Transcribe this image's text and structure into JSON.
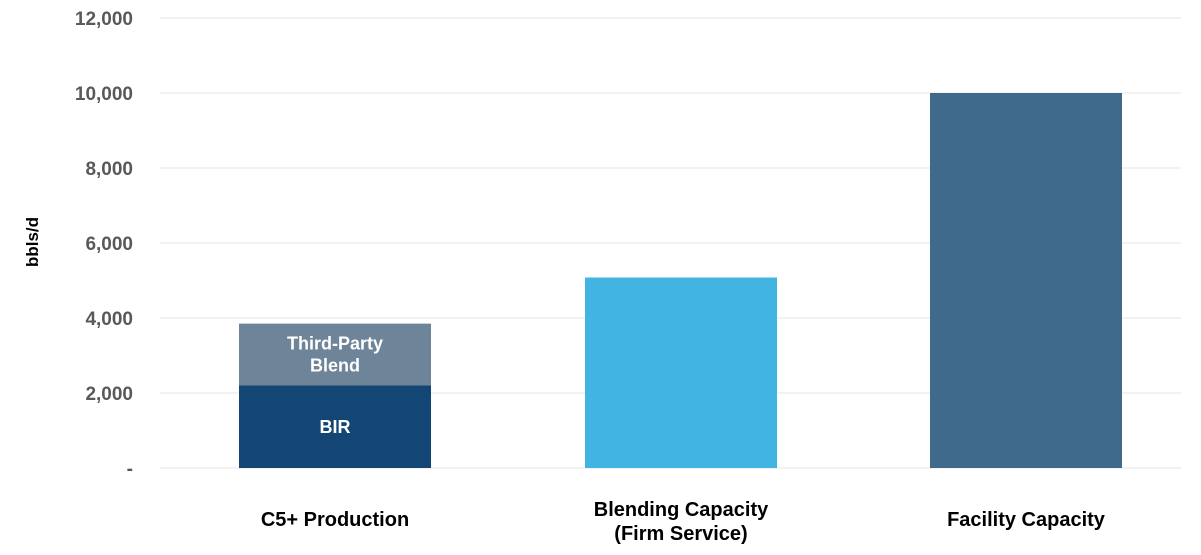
{
  "chart_data": {
    "type": "bar",
    "stacked": true,
    "ylabel": "bbls/d",
    "ylim": [
      0,
      12000
    ],
    "yticks": [
      0,
      2000,
      4000,
      6000,
      8000,
      10000,
      12000
    ],
    "ytick_labels": [
      "-",
      "2,000",
      "4,000",
      "6,000",
      "8,000",
      "10,000",
      "12,000"
    ],
    "grid": true,
    "categories": [
      {
        "lines": [
          "C5+ Production"
        ]
      },
      {
        "lines": [
          "Blending Capacity",
          "(Firm Service)"
        ]
      },
      {
        "lines": [
          "Facility Capacity"
        ]
      }
    ],
    "bars": [
      [
        {
          "label_lines": [
            "BIR"
          ],
          "value": 2200,
          "color": "#134675"
        },
        {
          "label_lines": [
            "Third-Party",
            "Blend"
          ],
          "value": 1650,
          "color": "#6d8499"
        }
      ],
      [
        {
          "label_lines": [],
          "value": 5080,
          "color": "#41b4e1"
        }
      ],
      [
        {
          "label_lines": [],
          "value": 10000,
          "color": "#3f6a8c"
        }
      ]
    ]
  }
}
